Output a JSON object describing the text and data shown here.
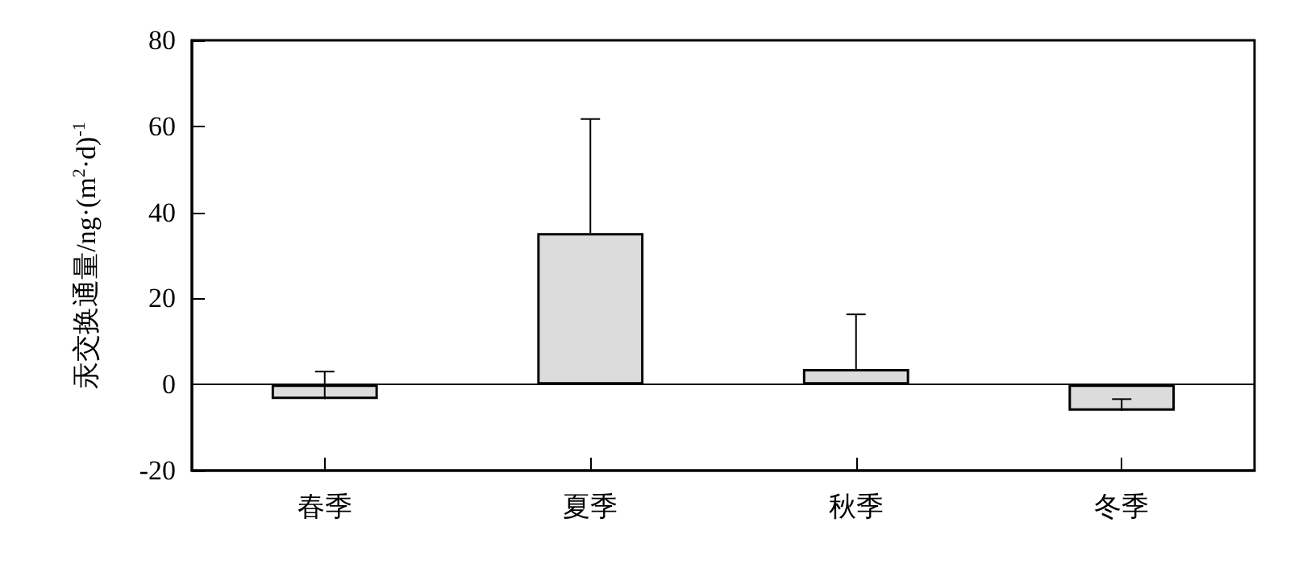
{
  "chart_data": {
    "type": "bar",
    "ylabel": "汞交换通量/ng·(m$^{2}$·d)$^{-1}$",
    "categories": [
      "春季",
      "夏季",
      "秋季",
      "冬季"
    ],
    "values": [
      -3.4,
      35.2,
      3.6,
      -6.1
    ],
    "color": "#dcdcdc",
    "errors": [
      [
        -3.4,
        3.0
      ],
      [
        35.2,
        61.7
      ],
      [
        3.6,
        16.3
      ],
      [
        -6.1,
        -3.4
      ]
    ],
    "ylim": [
      -20,
      80
    ],
    "yticks": [
      -20,
      0,
      20,
      40,
      60,
      80
    ],
    "grid": false,
    "ref_lines": [
      {
        "axis": "y",
        "value": 0
      }
    ]
  }
}
